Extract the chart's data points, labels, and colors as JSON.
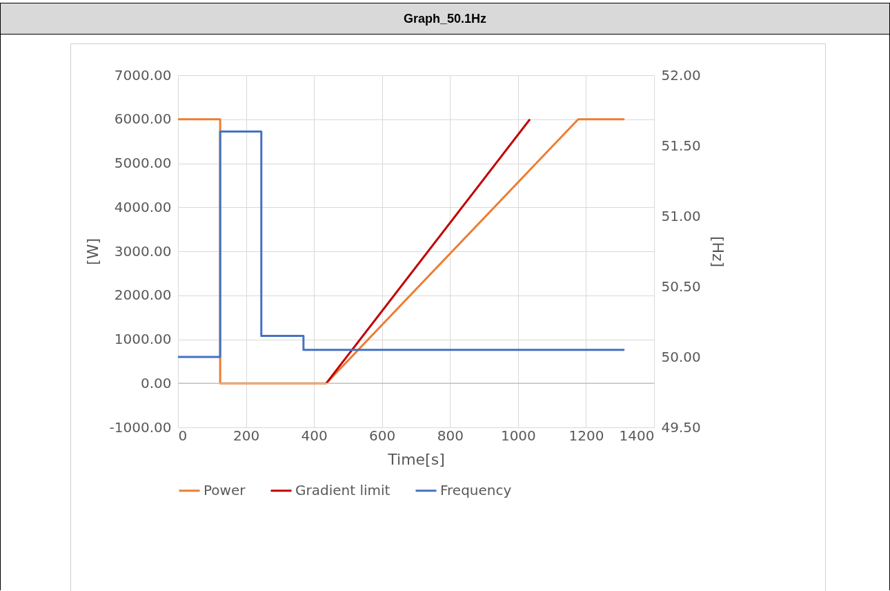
{
  "chart_data": {
    "type": "line",
    "title": "Graph_50.1Hz",
    "xlabel": "Time[s]",
    "ylabel": "[W]",
    "y2label": "[Hz]",
    "xlim": [
      0,
      1400
    ],
    "xticks": [
      0,
      200,
      400,
      600,
      800,
      1000,
      1200,
      1400
    ],
    "ylim": [
      -1000,
      7000
    ],
    "yticks": [
      {
        "value": -1000,
        "label": "-1000.00"
      },
      {
        "value": 0,
        "label": "0.00"
      },
      {
        "value": 1000,
        "label": "1000.00"
      },
      {
        "value": 2000,
        "label": "2000.00"
      },
      {
        "value": 3000,
        "label": "3000.00"
      },
      {
        "value": 4000,
        "label": "4000.00"
      },
      {
        "value": 5000,
        "label": "5000.00"
      },
      {
        "value": 6000,
        "label": "6000.00"
      },
      {
        "value": 7000,
        "label": "7000.00"
      }
    ],
    "y2lim": [
      49.5,
      52
    ],
    "y2ticks": [
      {
        "value": 49.5,
        "label": "49.50"
      },
      {
        "value": 50,
        "label": "50.00"
      },
      {
        "value": 50.5,
        "label": "50.50"
      },
      {
        "value": 51,
        "label": "51.00"
      },
      {
        "value": 51.5,
        "label": "51.50"
      },
      {
        "value": 52,
        "label": "52.00"
      }
    ],
    "grid": true,
    "legend": "bottom",
    "marker": "none",
    "line_style": "solid",
    "series": [
      {
        "name": "Power",
        "color": "#ed7d31",
        "x": [
          0,
          124,
          124,
          436,
          1177,
          1313
        ],
        "values": [
          6000,
          6000,
          0,
          0,
          6000,
          6000
        ]
      },
      {
        "name": "Gradient limit",
        "color": "#c00000",
        "x": [
          436,
          1035
        ],
        "values": [
          0,
          6000
        ]
      },
      {
        "name": "Frequency",
        "color": "#4472c4",
        "axis": "y2",
        "x": [
          0,
          124,
          124,
          245,
          245,
          369,
          369,
          1313
        ],
        "values": [
          50.0,
          50.0,
          51.6,
          51.6,
          50.15,
          50.15,
          50.05,
          50.05
        ]
      }
    ]
  }
}
